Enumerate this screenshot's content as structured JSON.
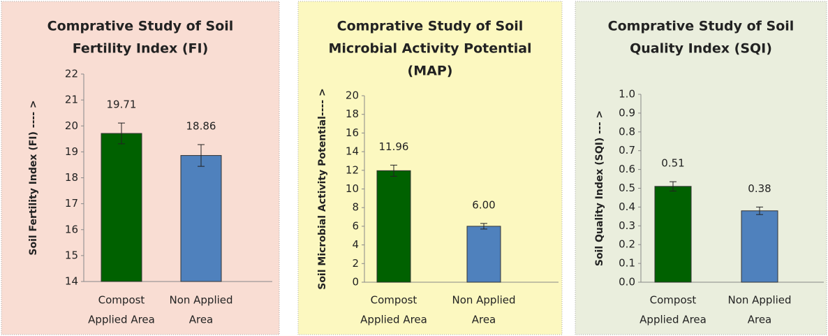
{
  "chart_data": [
    {
      "type": "bar",
      "title": [
        "Comprative Study of Soil",
        "Fertility Index (FI)"
      ],
      "y_label": "Soil Fertility Index (FI) ---- >",
      "categories": [
        [
          "Compost",
          "Applied Area"
        ],
        [
          "Non Applied",
          "Area"
        ]
      ],
      "values": [
        19.71,
        18.86
      ],
      "errors": [
        0.4,
        0.42
      ],
      "colors": [
        "#006100",
        "#4f81bd"
      ],
      "background": "#f9ddd3",
      "ylim": [
        14,
        22
      ],
      "yticks": [
        14,
        15,
        16,
        17,
        18,
        19,
        20,
        21,
        22
      ]
    },
    {
      "type": "bar",
      "title": [
        "Comprative Study of Soil",
        "Microbial Activity Potential",
        "(MAP)"
      ],
      "y_label": "Soil Microbial Activity Potential---- >",
      "categories": [
        [
          "Compost",
          "Applied Area"
        ],
        [
          "Non Applied",
          "Area"
        ]
      ],
      "values": [
        11.96,
        6
      ],
      "value_labels": [
        "11.96",
        "6.00"
      ],
      "errors": [
        0.6,
        0.3
      ],
      "colors": [
        "#006100",
        "#4f81bd"
      ],
      "background": "#fcf8c0",
      "ylim": [
        0,
        20
      ],
      "yticks": [
        0,
        2,
        4,
        6,
        8,
        10,
        12,
        14,
        16,
        18,
        20
      ]
    },
    {
      "type": "bar",
      "title": [
        "Comprative Study of Soil",
        "Quality Index (SQI)"
      ],
      "y_label": "Soil Quality Index (SQI) --- >",
      "categories": [
        [
          "Compost",
          "Applied Area"
        ],
        [
          "Non Applied",
          "Area"
        ]
      ],
      "values": [
        0.51,
        0.38
      ],
      "errors": [
        0.025,
        0.02
      ],
      "colors": [
        "#006100",
        "#4f81bd"
      ],
      "background": "#eaeedd",
      "ylim": [
        0,
        1
      ],
      "yticks": [
        {
          "value": 0,
          "label": "0.0"
        },
        0.1,
        0.2,
        0.3,
        0.4,
        0.5,
        0.6,
        0.7,
        0.8,
        0.9,
        {
          "value": 1,
          "label": "1.0"
        }
      ]
    }
  ]
}
